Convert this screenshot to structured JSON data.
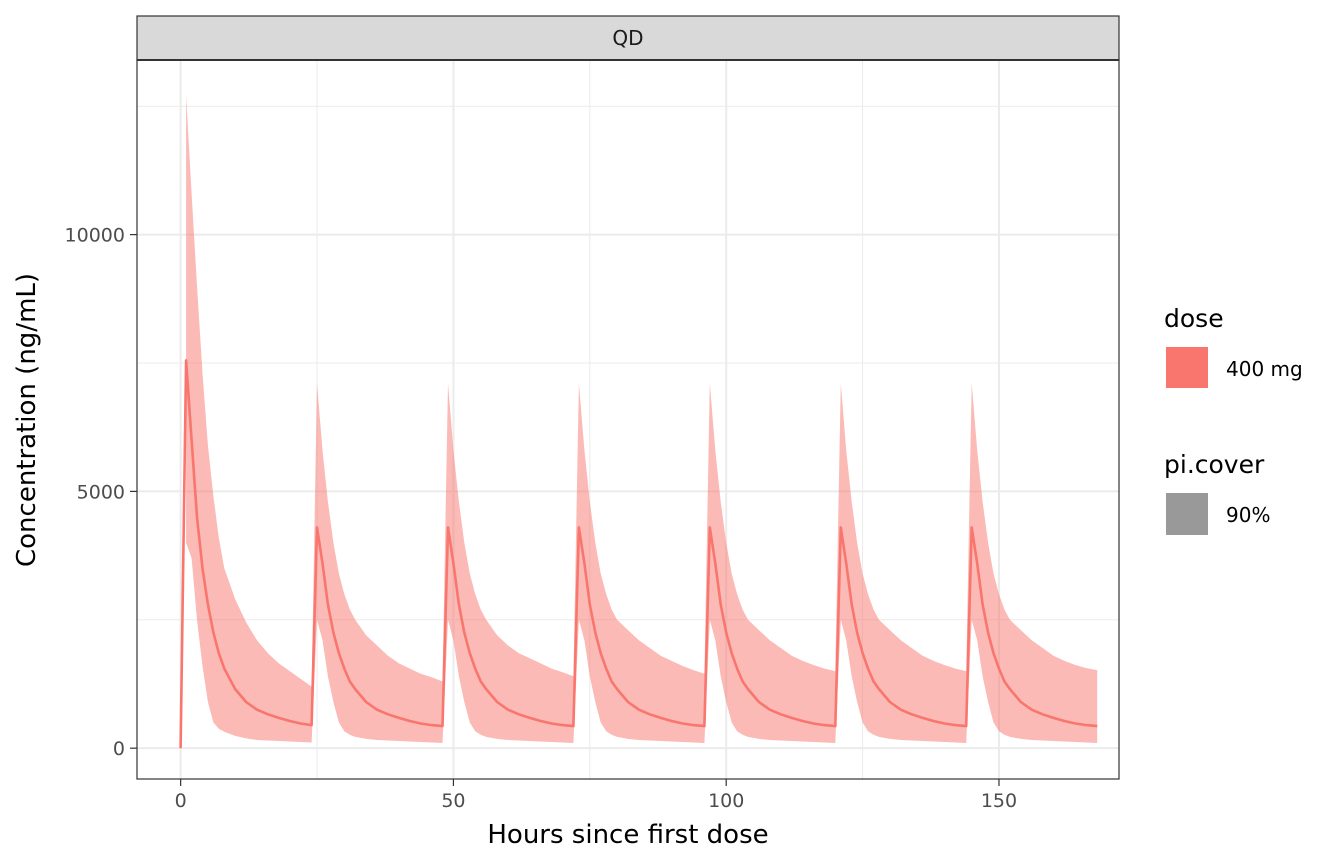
{
  "chart_data": {
    "type": "area",
    "facet_label": "QD",
    "title": "",
    "xlabel": "Hours since first dose",
    "ylabel": "Concentration (ng/mL)",
    "xlim": [
      -8,
      172
    ],
    "ylim": [
      -600,
      13400
    ],
    "x_ticks": [
      0,
      50,
      100,
      150
    ],
    "y_ticks": [
      0,
      5000,
      10000
    ],
    "x_tick_labels": [
      "0",
      "50",
      "100",
      "150"
    ],
    "y_tick_labels": [
      "0",
      "5000",
      "10000"
    ],
    "grid": true,
    "legend_position": "right",
    "legend": [
      {
        "title": "dose",
        "entries": [
          {
            "label": "400 mg",
            "color": "#F8766D"
          }
        ]
      },
      {
        "title": "pi.cover",
        "entries": [
          {
            "label": "90%",
            "color": "#999999"
          }
        ]
      }
    ],
    "colors": {
      "line": "#F8766D",
      "band": "#F8766D",
      "band_opacity": 0.5
    },
    "series": [
      {
        "kind": "median",
        "x": [
          0,
          1,
          2,
          3,
          4,
          5,
          6,
          7,
          8,
          10,
          12,
          14,
          16,
          18,
          20,
          22,
          24,
          25,
          26,
          27,
          28,
          29,
          30,
          31,
          32,
          34,
          36,
          38,
          40,
          42,
          44,
          46,
          48,
          49,
          50,
          51,
          52,
          53,
          54,
          55,
          56,
          58,
          60,
          62,
          64,
          66,
          68,
          70,
          72,
          73,
          74,
          75,
          76,
          77,
          78,
          79,
          80,
          82,
          84,
          86,
          88,
          90,
          92,
          94,
          96,
          97,
          98,
          99,
          100,
          101,
          102,
          103,
          104,
          106,
          108,
          110,
          112,
          114,
          116,
          118,
          120,
          121,
          122,
          123,
          124,
          125,
          126,
          127,
          128,
          130,
          132,
          134,
          136,
          138,
          140,
          142,
          144,
          145,
          146,
          147,
          148,
          149,
          150,
          151,
          152,
          154,
          156,
          158,
          160,
          162,
          164,
          166,
          168
        ],
        "y": [
          0,
          7550,
          6000,
          4500,
          3500,
          2800,
          2250,
          1850,
          1550,
          1150,
          900,
          750,
          660,
          590,
          530,
          480,
          450,
          4300,
          3600,
          2800,
          2250,
          1850,
          1550,
          1300,
          1150,
          900,
          750,
          660,
          590,
          530,
          480,
          450,
          430,
          4300,
          3600,
          2800,
          2250,
          1850,
          1550,
          1300,
          1150,
          900,
          750,
          660,
          590,
          530,
          480,
          450,
          430,
          4300,
          3600,
          2800,
          2250,
          1850,
          1550,
          1300,
          1150,
          900,
          750,
          660,
          590,
          530,
          480,
          450,
          430,
          4300,
          3600,
          2800,
          2250,
          1850,
          1550,
          1300,
          1150,
          900,
          750,
          660,
          590,
          530,
          480,
          450,
          430,
          4300,
          3600,
          2800,
          2250,
          1850,
          1550,
          1300,
          1150,
          900,
          750,
          660,
          590,
          530,
          480,
          450,
          430,
          4300,
          3600,
          2800,
          2250,
          1850,
          1550,
          1300,
          1150,
          900,
          750,
          660,
          590,
          530,
          480,
          450,
          430
        ]
      },
      {
        "kind": "pi_band",
        "x": [
          1,
          2,
          3,
          4,
          5,
          6,
          7,
          8,
          10,
          12,
          14,
          16,
          18,
          20,
          22,
          24,
          25,
          26,
          27,
          28,
          29,
          30,
          31,
          32,
          34,
          36,
          38,
          40,
          42,
          44,
          46,
          48,
          49,
          50,
          51,
          52,
          53,
          54,
          55,
          56,
          58,
          60,
          62,
          64,
          66,
          68,
          70,
          72,
          73,
          74,
          75,
          76,
          77,
          78,
          79,
          80,
          82,
          84,
          86,
          88,
          90,
          92,
          94,
          96,
          97,
          98,
          99,
          100,
          101,
          102,
          103,
          104,
          106,
          108,
          110,
          112,
          114,
          116,
          118,
          120,
          121,
          122,
          123,
          124,
          125,
          126,
          127,
          128,
          130,
          132,
          134,
          136,
          138,
          140,
          142,
          144,
          145,
          146,
          147,
          148,
          149,
          150,
          151,
          152,
          154,
          156,
          158,
          160,
          162,
          164,
          166,
          168
        ],
        "lower": [
          4000,
          3700,
          2500,
          1600,
          900,
          500,
          380,
          320,
          240,
          190,
          160,
          150,
          140,
          130,
          120,
          110,
          2500,
          2100,
          1400,
          900,
          500,
          330,
          260,
          220,
          180,
          160,
          150,
          140,
          130,
          120,
          110,
          100,
          2500,
          2100,
          1400,
          900,
          500,
          330,
          260,
          220,
          180,
          160,
          150,
          140,
          130,
          120,
          110,
          100,
          2500,
          2100,
          1400,
          900,
          500,
          330,
          260,
          220,
          180,
          160,
          150,
          140,
          130,
          120,
          110,
          100,
          2500,
          2100,
          1400,
          900,
          500,
          330,
          260,
          220,
          180,
          160,
          150,
          140,
          130,
          120,
          110,
          100,
          2500,
          2100,
          1400,
          900,
          500,
          330,
          260,
          220,
          180,
          160,
          150,
          140,
          130,
          120,
          110,
          100,
          2500,
          2100,
          1400,
          900,
          500,
          330,
          260,
          220,
          180,
          160,
          150,
          140,
          130,
          120,
          110,
          100
        ],
        "upper": [
          12700,
          10800,
          9000,
          7300,
          5900,
          4900,
          4100,
          3500,
          2900,
          2450,
          2100,
          1850,
          1650,
          1500,
          1350,
          1200,
          7100,
          5800,
          4800,
          4000,
          3400,
          3000,
          2700,
          2500,
          2200,
          2000,
          1800,
          1650,
          1550,
          1450,
          1380,
          1300,
          7100,
          5800,
          4800,
          4000,
          3400,
          3000,
          2700,
          2500,
          2200,
          2000,
          1850,
          1750,
          1650,
          1550,
          1480,
          1400,
          7100,
          5800,
          4800,
          4000,
          3400,
          3000,
          2700,
          2500,
          2300,
          2100,
          1950,
          1800,
          1700,
          1600,
          1520,
          1450,
          7100,
          5800,
          4800,
          4000,
          3400,
          3000,
          2700,
          2500,
          2300,
          2100,
          1950,
          1800,
          1700,
          1620,
          1550,
          1500,
          7100,
          5800,
          4800,
          4000,
          3400,
          3000,
          2700,
          2500,
          2300,
          2100,
          1950,
          1800,
          1700,
          1620,
          1550,
          1500,
          7100,
          5800,
          4800,
          4000,
          3400,
          3000,
          2700,
          2500,
          2300,
          2100,
          1950,
          1800,
          1700,
          1620,
          1560,
          1520
        ]
      }
    ]
  }
}
